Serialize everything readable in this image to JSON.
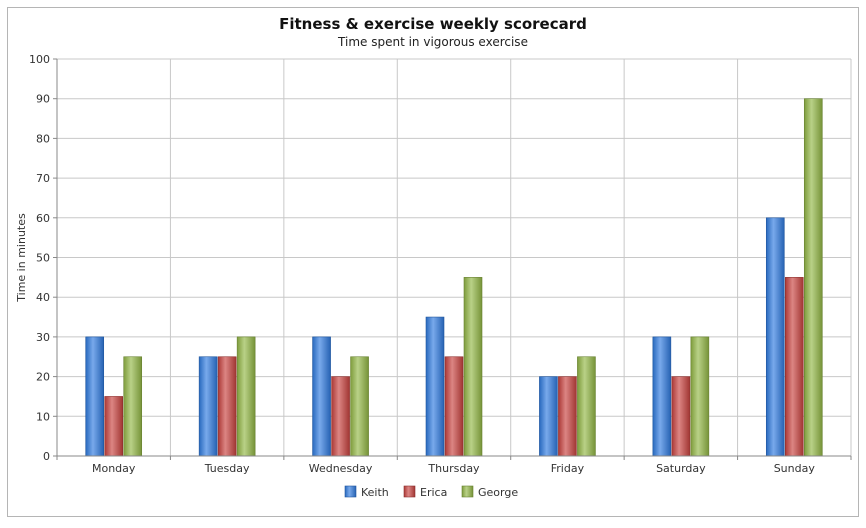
{
  "chart_data": {
    "type": "bar",
    "title": "Fitness & exercise weekly scorecard",
    "subtitle": "Time spent in vigorous exercise",
    "xlabel": "",
    "ylabel": "Time in minutes",
    "ylim": [
      0,
      100
    ],
    "yticks": [
      0,
      10,
      20,
      30,
      40,
      50,
      60,
      70,
      80,
      90,
      100
    ],
    "categories": [
      "Monday",
      "Tuesday",
      "Wednesday",
      "Thursday",
      "Friday",
      "Saturday",
      "Sunday"
    ],
    "series": [
      {
        "name": "Keith",
        "color": "#2f7be0",
        "values": [
          30,
          25,
          30,
          35,
          20,
          30,
          60
        ]
      },
      {
        "name": "Erica",
        "color": "#c94340",
        "values": [
          15,
          25,
          20,
          25,
          20,
          20,
          45
        ]
      },
      {
        "name": "George",
        "color": "#94b846",
        "values": [
          25,
          30,
          25,
          45,
          25,
          30,
          90
        ]
      }
    ],
    "grid": true,
    "legend_position": "bottom"
  }
}
